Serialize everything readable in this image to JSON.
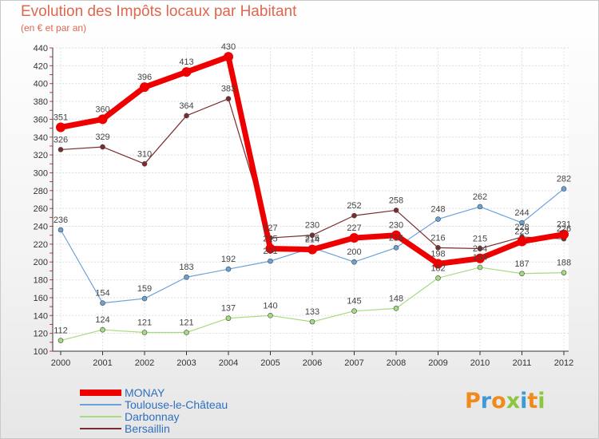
{
  "chart_data": {
    "type": "line",
    "title": "Evolution des Impôts locaux par Habitant",
    "subtitle": "(en € et par an)",
    "x": [
      "2000",
      "2001",
      "2002",
      "2003",
      "2004",
      "2005",
      "2006",
      "2007",
      "2008",
      "2009",
      "2010",
      "2011",
      "2012"
    ],
    "yticks": [
      "100",
      "120",
      "140",
      "160",
      "180",
      "200",
      "220",
      "240",
      "260",
      "280",
      "300",
      "320",
      "340",
      "360",
      "380",
      "400",
      "420",
      "440"
    ],
    "ylim": [
      100,
      440
    ],
    "series": [
      {
        "name": "MONAY",
        "color": "#ee0000",
        "values": [
          351,
          360,
          396,
          413,
          430,
          215,
          214,
          227,
          230,
          198,
          204,
          223,
          231
        ],
        "labels": [
          "351",
          "360",
          "396",
          "413",
          "430",
          "215",
          "214",
          "227",
          "230",
          "198",
          "204",
          "223",
          "231"
        ]
      },
      {
        "name": "Toulouse-le-Château",
        "color": "#6aa2d8",
        "values": [
          236,
          154,
          159,
          183,
          192,
          201,
          216,
          200,
          216,
          248,
          262,
          244,
          282
        ],
        "labels": [
          "236",
          "154",
          "159",
          "183",
          "192",
          "201",
          "216",
          "200",
          "216",
          "248",
          "262",
          "244",
          "282"
        ]
      },
      {
        "name": "Darbonnay",
        "color": "#a6dc80",
        "values": [
          112,
          124,
          121,
          121,
          137,
          140,
          133,
          145,
          148,
          182,
          194,
          187,
          188
        ],
        "labels": [
          "112",
          "124",
          "121",
          "121",
          "137",
          "140",
          "133",
          "145",
          "148",
          "182",
          "194",
          "187",
          "188"
        ]
      },
      {
        "name": "Bersaillin",
        "color": "#7b2d2d",
        "values": [
          326,
          329,
          310,
          364,
          383,
          227,
          230,
          252,
          258,
          216,
          215,
          228,
          226
        ],
        "labels": [
          "326",
          "329",
          "310",
          "364",
          "383",
          "227",
          "230",
          "252",
          "258",
          "216",
          "215",
          "228",
          "226"
        ]
      }
    ]
  },
  "legend": {
    "items": [
      {
        "label": "MONAY",
        "color": "#ee0000"
      },
      {
        "label": "Toulouse-le-Château",
        "color": "#6aa2d8"
      },
      {
        "label": "Darbonnay",
        "color": "#a6dc80"
      },
      {
        "label": "Bersaillin",
        "color": "#7b2d2d"
      }
    ]
  },
  "logo": {
    "letters": [
      "P",
      "r",
      "o",
      "x",
      "i",
      "t",
      "i"
    ],
    "colors": [
      "#f08a1c",
      "#3e9ad6",
      "#f08a1c",
      "#8cc63e",
      "#3e9ad6",
      "#f08a1c",
      "#8cc63e"
    ]
  }
}
